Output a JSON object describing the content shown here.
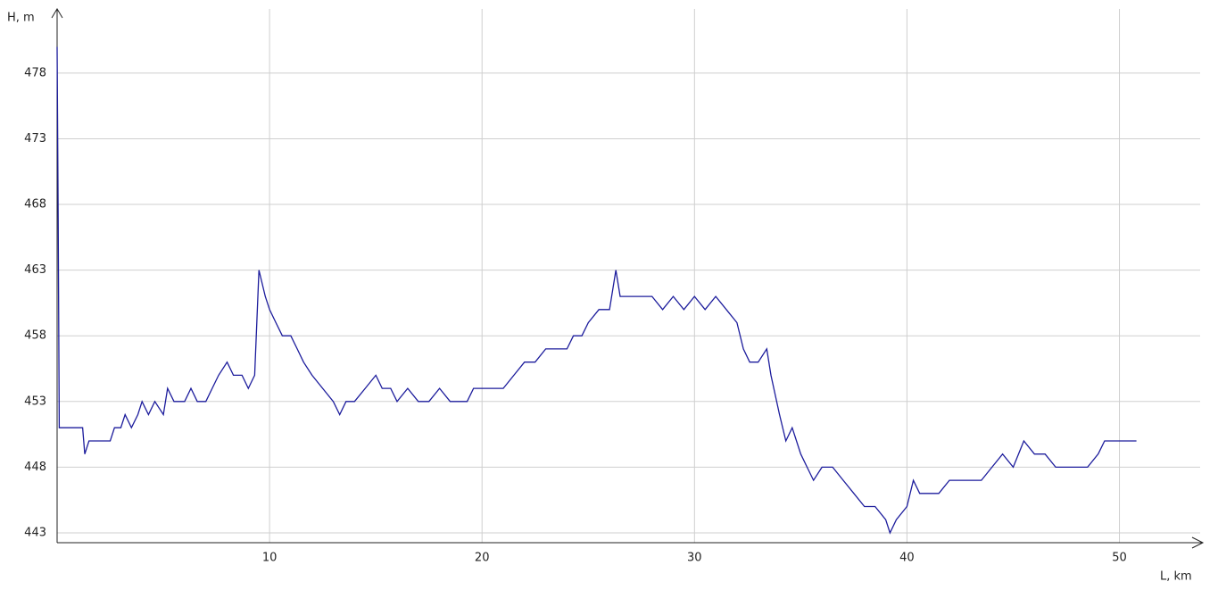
{
  "chart_data": {
    "type": "line",
    "y_label": "H, m",
    "x_label": "L, km",
    "xlim": [
      0,
      53.8
    ],
    "ylim": [
      442.25,
      482.75
    ],
    "xticks": [
      10,
      20,
      30,
      40,
      50
    ],
    "yticks": [
      443,
      448,
      453,
      458,
      463,
      468,
      473,
      478
    ],
    "grid": true,
    "series": [
      {
        "color": "#1c1c9c",
        "x": [
          0,
          0.05,
          0.1,
          1.2,
          1.3,
          1.5,
          2.5,
          2.7,
          3.0,
          3.2,
          3.5,
          3.8,
          4.0,
          4.3,
          4.6,
          5.0,
          5.2,
          5.5,
          6.0,
          6.3,
          6.6,
          7.0,
          7.3,
          7.6,
          8.0,
          8.3,
          8.7,
          9.0,
          9.3,
          9.5,
          9.8,
          10.0,
          10.3,
          10.6,
          11.0,
          11.3,
          11.6,
          12.0,
          12.5,
          13.0,
          13.3,
          13.6,
          14.0,
          14.5,
          15.0,
          15.3,
          15.7,
          16.0,
          16.5,
          17.0,
          17.5,
          18.0,
          18.5,
          19.0,
          19.3,
          19.6,
          20.0,
          21.0,
          21.5,
          22.0,
          22.5,
          23.0,
          23.5,
          24.0,
          24.3,
          24.7,
          25.0,
          25.5,
          26.0,
          26.3,
          26.5,
          27.0,
          28.0,
          28.5,
          29.0,
          29.5,
          30.0,
          30.5,
          31.0,
          31.5,
          32.0,
          32.3,
          32.6,
          33.0,
          33.4,
          33.6,
          34.0,
          34.3,
          34.6,
          35.0,
          35.3,
          35.6,
          36.0,
          36.5,
          37.0,
          37.5,
          38.0,
          38.5,
          39.0,
          39.2,
          39.5,
          40.0,
          40.3,
          40.6,
          41.0,
          41.5,
          42.0,
          42.5,
          43.0,
          43.5,
          44.0,
          44.5,
          45.0,
          45.5,
          46.0,
          46.5,
          47.0,
          47.5,
          48.0,
          48.5,
          49.0,
          49.3,
          49.7,
          50.0,
          50.5,
          50.8
        ],
        "values": [
          480,
          467,
          451,
          451,
          449,
          450,
          450,
          451,
          451,
          452,
          451,
          452,
          453,
          452,
          453,
          452,
          454,
          453,
          453,
          454,
          453,
          453,
          454,
          455,
          456,
          455,
          455,
          454,
          455,
          463,
          461,
          460,
          459,
          458,
          458,
          457,
          456,
          455,
          454,
          453,
          452,
          453,
          453,
          454,
          455,
          454,
          454,
          453,
          454,
          453,
          453,
          454,
          453,
          453,
          453,
          454,
          454,
          454,
          455,
          456,
          456,
          457,
          457,
          457,
          458,
          458,
          459,
          460,
          460,
          463,
          461,
          461,
          461,
          460,
          461,
          460,
          461,
          460,
          461,
          460,
          459,
          457,
          456,
          456,
          457,
          455,
          452,
          450,
          451,
          449,
          448,
          447,
          448,
          448,
          447,
          446,
          445,
          445,
          444,
          443,
          444,
          445,
          447,
          446,
          446,
          446,
          447,
          447,
          447,
          447,
          448,
          449,
          448,
          450,
          449,
          449,
          448,
          448,
          448,
          448,
          449,
          450,
          450,
          450,
          450,
          450
        ]
      }
    ]
  }
}
